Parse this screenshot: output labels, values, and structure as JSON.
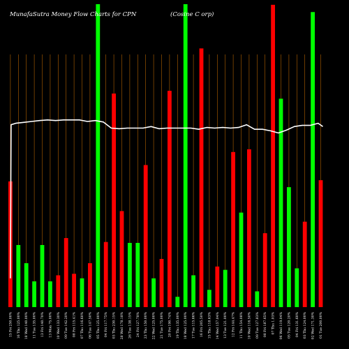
{
  "chart_data": {
    "type": "bar",
    "title": "MunafaSutra  Money Flow  Charts for CPN",
    "subtitle": "(Cosine    C                                                          orp)",
    "ylim": [
      0,
      100
    ],
    "colors": {
      "up": "#00ff00",
      "down": "#ff0000",
      "line": "#ffffff",
      "grid": "#b36200",
      "background": "#000000"
    },
    "bars": [
      {
        "date": "15 Fri 250.00%",
        "value": 41.5,
        "color": "red"
      },
      {
        "date": "16 Thu 125.00%",
        "value": 20.5,
        "color": "green"
      },
      {
        "date": "18 Wed 140.00%",
        "value": 14.5,
        "color": "green"
      },
      {
        "date": "11 Tue 135.00%",
        "value": 8.5,
        "color": "green"
      },
      {
        "date": "13 Fri 140.70%",
        "value": 20.5,
        "color": "green"
      },
      {
        "date": "13 Mon 75.00%",
        "value": 8.5,
        "color": "green"
      },
      {
        "date": "10 Wed 133.30%",
        "value": 10.5,
        "color": "red"
      },
      {
        "date": "09 Tue 142.20%",
        "value": 22.8,
        "color": "red"
      },
      {
        "date": "08 Fri 115.41%",
        "value": 11.0,
        "color": "red"
      },
      {
        "date": "07 Thu 116.60%",
        "value": 9.5,
        "color": "green"
      },
      {
        "date": "06 Tue 147.50%",
        "value": 14.5,
        "color": "red"
      },
      {
        "date": "05 Thu 125.00%",
        "value": 100,
        "color": "green"
      },
      {
        "date": "04 Fri 117.75%",
        "value": 21.5,
        "color": "red"
      },
      {
        "date": "03 Thu 230.15%",
        "value": 70.5,
        "color": "red"
      },
      {
        "date": "28 Wed 178.18%",
        "value": 31.7,
        "color": "red"
      },
      {
        "date": "26 Tue 138.15%",
        "value": 21.2,
        "color": "green"
      },
      {
        "date": "24 Fri 127.78%",
        "value": 21.2,
        "color": "green"
      },
      {
        "date": "23 Thu 150.00%",
        "value": 46.9,
        "color": "red"
      },
      {
        "date": "22 Wed 125.00%",
        "value": 9.5,
        "color": "green"
      },
      {
        "date": "21 Tue 175.00%",
        "value": 15.9,
        "color": "red"
      },
      {
        "date": "20 Fri 190.74%",
        "value": 71.4,
        "color": "red"
      },
      {
        "date": "19 Thu 135.00%",
        "value": 3.4,
        "color": "green"
      },
      {
        "date": "18 Wed 125.00%",
        "value": 100,
        "color": "green"
      },
      {
        "date": "17 Tue 115.66%",
        "value": 10.5,
        "color": "green"
      },
      {
        "date": "16 Fri 205.50%",
        "value": 85.4,
        "color": "red"
      },
      {
        "date": "15 Thu 118.63%",
        "value": 5.7,
        "color": "green"
      },
      {
        "date": "14 Wed 157.04%",
        "value": 13.4,
        "color": "red"
      },
      {
        "date": "13 Tue 121.00%",
        "value": 12.3,
        "color": "green"
      },
      {
        "date": "12 Fri 144.47%",
        "value": 51.2,
        "color": "red"
      },
      {
        "date": "11 Thu 154.08%",
        "value": 31.2,
        "color": "green"
      },
      {
        "date": "10 Wed 116.50%",
        "value": 52.1,
        "color": "red"
      },
      {
        "date": "09 Tue 127.83%",
        "value": 5.2,
        "color": "green"
      },
      {
        "date": "08 Fri 187.65%",
        "value": 24.4,
        "color": "red"
      },
      {
        "date": "07 Thu 1.03%",
        "value": 99.8,
        "color": "red"
      },
      {
        "date": "06 Wed 119.04%",
        "value": 68.8,
        "color": "green"
      },
      {
        "date": "05 Tue 120.20%",
        "value": 39.6,
        "color": "green"
      },
      {
        "date": "04 Fri 131.60%",
        "value": 12.8,
        "color": "green"
      },
      {
        "date": "03 Thu 124.00%",
        "value": 28.2,
        "color": "red"
      },
      {
        "date": "02 Wed 171.30%",
        "value": 97.4,
        "color": "green"
      },
      {
        "date": "01 Tue 200.00%",
        "value": 41.9,
        "color": "red"
      }
    ],
    "line": [
      60.2,
      60.7,
      61.0,
      61.3,
      61.6,
      61.8,
      61.6,
      61.8,
      61.8,
      61.8,
      61.3,
      61.6,
      61.1,
      59.1,
      58.9,
      59.1,
      59.1,
      59.1,
      59.6,
      58.9,
      59.1,
      59.1,
      59.1,
      59.1,
      58.7,
      59.3,
      59.1,
      59.3,
      59.1,
      59.3,
      60.2,
      58.7,
      58.7,
      58.2,
      57.5,
      58.4,
      59.6,
      60.0,
      60.0,
      60.7,
      59.6
    ],
    "line_start": 9.5
  }
}
